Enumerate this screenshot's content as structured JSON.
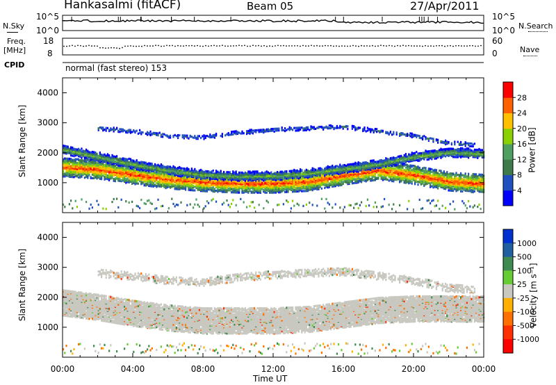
{
  "header": {
    "station": "Hankasalmi (fitACF)",
    "beam": "Beam 05",
    "date": "27/Apr/2011"
  },
  "top_panel": {
    "left_label": "N.Sky",
    "left_ticks": [
      "10^5",
      "10^0"
    ],
    "right_ticks": [
      "10^5",
      "10^0"
    ],
    "right_label": "N.Search"
  },
  "freq_panel": {
    "label_line1": "Freq.",
    "label_line2": "[MHz]",
    "left_ticks": [
      "18",
      "8"
    ],
    "right_ticks": [
      "60",
      "0"
    ],
    "right_label": "Nave"
  },
  "cpid_panel": {
    "label": "CPID",
    "text": "normal (fast stereo) 153"
  },
  "chart_data": [
    {
      "type": "heatmap",
      "name": "power",
      "ylabel": "Slant Range [km]",
      "ylim": [
        0,
        4500
      ],
      "yticks": [
        1000,
        2000,
        3000,
        4000
      ],
      "ytick_labels": [
        "1000",
        "2000",
        "3000",
        "4000"
      ],
      "xlim": [
        0,
        24
      ],
      "colorbar": {
        "label": "Power [dB]",
        "ticks": [
          "4",
          "8",
          "12",
          "16",
          "20",
          "24",
          "28"
        ],
        "colors": [
          "#0000ff",
          "#2050c0",
          "#3f7a4a",
          "#4fa060",
          "#8bd000",
          "#ffc000",
          "#ff6000",
          "#ff0000"
        ]
      },
      "bands": [
        {
          "x": [
            0,
            2,
            4,
            6,
            8,
            10,
            12,
            14,
            16,
            18,
            20,
            22,
            24
          ],
          "center_km": [
            1550,
            1480,
            1300,
            1150,
            1060,
            1010,
            1010,
            1070,
            1280,
            1450,
            1300,
            1080,
            1000
          ],
          "width_km": 380,
          "power_db": 28
        },
        {
          "x": [
            0,
            2,
            4,
            6,
            8,
            10,
            12,
            14,
            16,
            18,
            20,
            22,
            24
          ],
          "center_km": [
            2150,
            1900,
            1650,
            1450,
            1300,
            1250,
            1260,
            1350,
            1500,
            1650,
            1900,
            2050,
            2000
          ],
          "width_km": 260,
          "power_db": 16
        },
        {
          "x": [
            2,
            4,
            6,
            8,
            10,
            12,
            14,
            16,
            18,
            20,
            22,
            23.5
          ],
          "center_km": [
            2850,
            2750,
            2600,
            2550,
            2700,
            2800,
            2850,
            2900,
            2750,
            2600,
            2350,
            2300
          ],
          "width_km": 220,
          "power_db": 8
        }
      ]
    },
    {
      "type": "heatmap",
      "name": "velocity",
      "ylabel": "Slant Range [km]",
      "ylim": [
        0,
        4500
      ],
      "yticks": [
        1000,
        2000,
        3000,
        4000
      ],
      "ytick_labels": [
        "1000",
        "2000",
        "3000",
        "4000"
      ],
      "xlim": [
        0,
        24
      ],
      "xtick_labels": [
        "00:00",
        "04:00",
        "08:00",
        "12:00",
        "16:00",
        "20:00",
        "00:00"
      ],
      "xlabel": "Time UT",
      "colorbar": {
        "label": "Velocity [m s⁻¹]",
        "ticks": [
          "1000",
          "500",
          "100",
          "25",
          "-25",
          "-100",
          "-500",
          "-1000"
        ],
        "colors": [
          "#0030d0",
          "#2060a0",
          "#3f8a50",
          "#66cc33",
          "#c8c8c0",
          "#ffb000",
          "#ff7000",
          "#ff3000",
          "#ff0000"
        ]
      },
      "bands": [
        {
          "x": [
            0,
            2,
            4,
            6,
            8,
            10,
            12,
            14,
            16,
            18,
            20,
            22,
            24
          ],
          "center_km": [
            1850,
            1700,
            1500,
            1350,
            1250,
            1250,
            1250,
            1300,
            1450,
            1600,
            1650,
            1650,
            1650
          ],
          "width_km": 650,
          "velocity": 0
        },
        {
          "x": [
            2,
            4,
            6,
            8,
            10,
            12,
            14,
            16,
            18,
            20,
            22,
            23.5
          ],
          "center_km": [
            2850,
            2750,
            2600,
            2550,
            2700,
            2800,
            2850,
            2900,
            2750,
            2600,
            2350,
            2300
          ],
          "width_km": 200,
          "velocity": 0
        }
      ]
    }
  ]
}
